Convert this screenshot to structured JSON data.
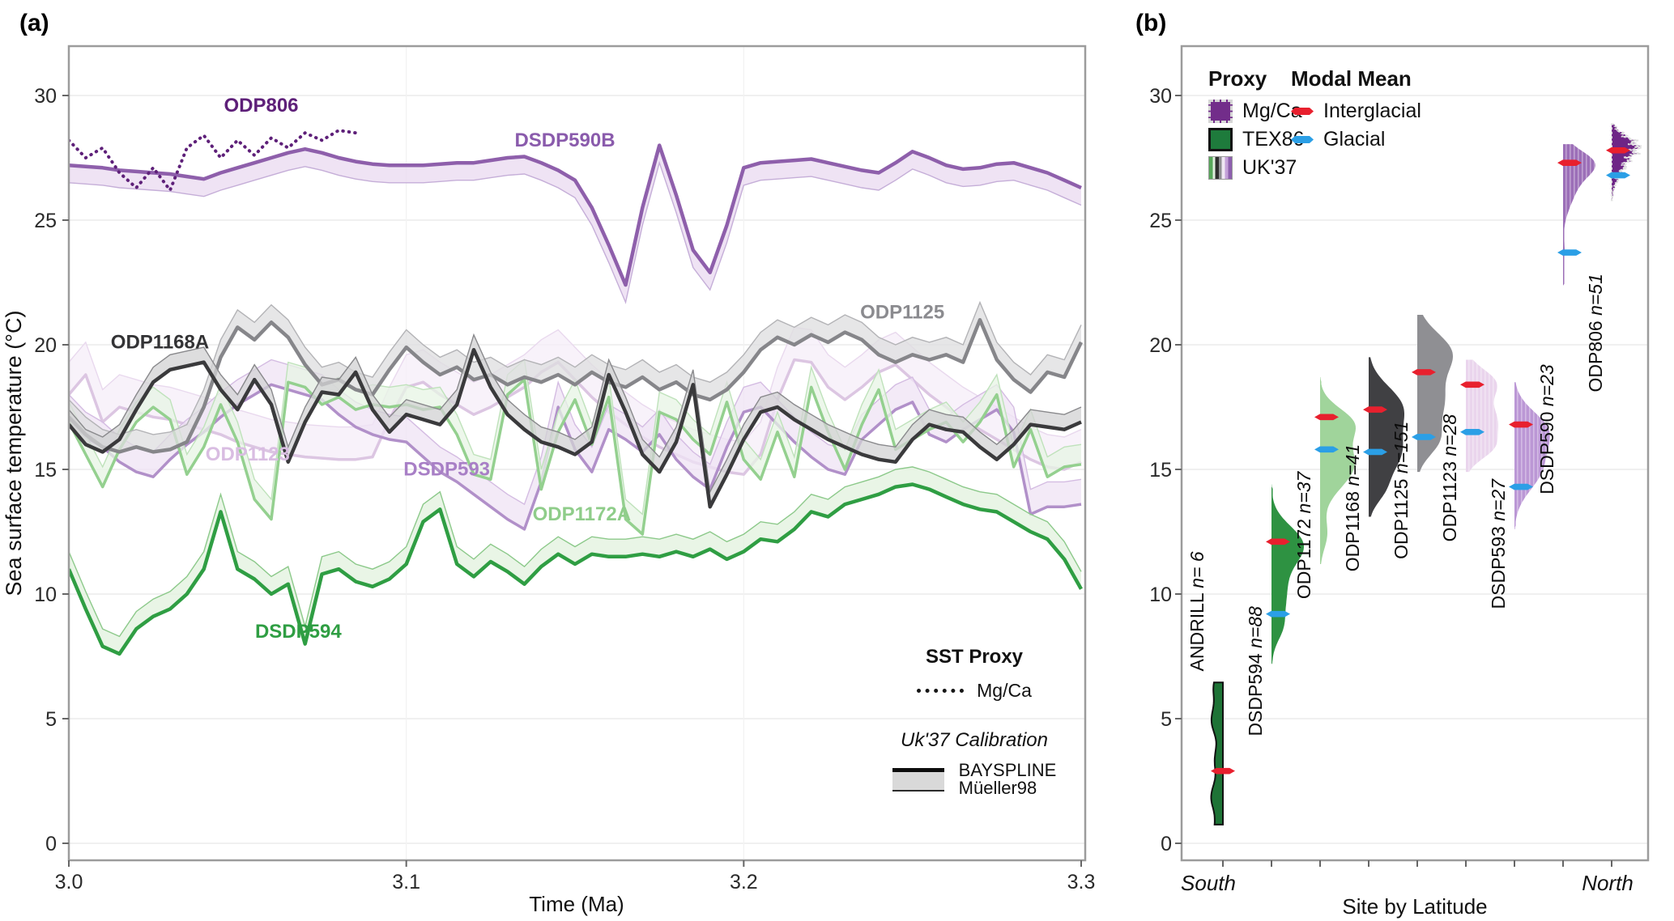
{
  "figure": {
    "panel_a_letter": "(a)",
    "panel_b_letter": "(b)"
  },
  "panel_a": {
    "y_axis_title": "Sea surface temperature (°C)",
    "x_axis_title": "Time (Ma)",
    "legend": {
      "sst_proxy_title": "SST Proxy",
      "mgca_label": "Mg/Ca",
      "uk37_title": "Uk'37 Calibration",
      "bayspline_label": "BAYSPLINE",
      "mueller_label": "Müeller98"
    }
  },
  "panel_b": {
    "x_axis_title": "Site by Latitude",
    "south_label": "South",
    "north_label": "North",
    "legend": {
      "proxy_title": "Proxy",
      "mgca_label": "Mg/Ca",
      "tex86_label": "TEX86",
      "uk37_label": "UK'37",
      "modal_mean_title": "Modal Mean",
      "interglacial_label": "Interglacial",
      "glacial_label": "Glacial"
    }
  },
  "chart_data": [
    {
      "type": "line",
      "panel": "a",
      "xlabel": "Time (Ma)",
      "ylabel": "Sea surface temperature (°C)",
      "xlim": [
        3.0,
        3.3
      ],
      "ylim": [
        -0.7,
        32.6
      ],
      "x_ticks": [
        {
          "v": 3.0,
          "label": "3.0"
        },
        {
          "v": 3.1,
          "label": "3.1"
        },
        {
          "v": 3.2,
          "label": "3.2"
        },
        {
          "v": 3.3,
          "label": "3.3"
        }
      ],
      "y_ticks": [
        0,
        5,
        10,
        15,
        20,
        25,
        30
      ],
      "grid": "horizontal",
      "x_step": 0.005,
      "series": [
        {
          "name": "ODP1123",
          "proxy": "UK'37",
          "color": "#dcc6e2",
          "line_width": 3.5,
          "band_offset": 1.3,
          "band_color": "#f6eef8",
          "band_edge": "#e9d9ee",
          "label": {
            "text": "ODP1123",
            "x": 3.053,
            "y": 15.35,
            "color": "#d9bde2"
          },
          "x_start": 3.0,
          "values": [
            18.0,
            18.8,
            16.9,
            17.5,
            17.3,
            17.1,
            17.0,
            16.8,
            16.6,
            16.4,
            16.1,
            15.9,
            15.7,
            15.6,
            15.5,
            15.45,
            15.4,
            15.4,
            15.5,
            17.0,
            18.3,
            18.5,
            18.0,
            17.6,
            17.2,
            17.5,
            17.9,
            18.3,
            18.9,
            19.3,
            18.6,
            17.9,
            17.3,
            16.8,
            16.3,
            15.9,
            15.6,
            15.3,
            15.1,
            14.9,
            14.8,
            15.6,
            17.8,
            19.4,
            19.3,
            18.3,
            17.8,
            18.3,
            18.9,
            19.2,
            18.6,
            18.0,
            17.5,
            17.0,
            16.6,
            16.2,
            15.8,
            15.4,
            15.1,
            15.0,
            15.3
          ]
        },
        {
          "name": "DSDP593",
          "proxy": "UK'37",
          "color": "#b190c9",
          "line_width": 3.5,
          "band_offset": 1.0,
          "band_color": "#efe3f4",
          "band_edge": "#d4bce2",
          "label": {
            "text": "DSDP593",
            "x": 3.112,
            "y": 14.75,
            "color": "#a87fc6"
          },
          "x_start": 3.0,
          "values": [
            17.0,
            16.3,
            15.9,
            15.3,
            14.9,
            14.7,
            15.4,
            16.0,
            16.5,
            17.1,
            17.6,
            18.0,
            18.4,
            18.2,
            18.0,
            17.8,
            17.2,
            16.7,
            16.4,
            16.2,
            16.1,
            15.5,
            14.9,
            14.5,
            14.0,
            13.5,
            13.0,
            12.6,
            14.5,
            17.5,
            15.8,
            14.9,
            16.6,
            16.2,
            15.7,
            16.4,
            15.4,
            14.7,
            14.2,
            15.9,
            17.3,
            17.5,
            16.8,
            16.1,
            15.5,
            15.0,
            14.8,
            16.2,
            16.8,
            17.4,
            17.7,
            16.4,
            16.1,
            16.6,
            17.0,
            17.4,
            16.5,
            13.2,
            13.5,
            13.5,
            13.6
          ]
        },
        {
          "name": "ODP1172A",
          "proxy": "TEX86",
          "color": "#94d08f",
          "line_width": 3.5,
          "band_offset": 0.8,
          "band_color": "#e7f4e4",
          "band_edge": "#bfe2bb",
          "label": {
            "text": "ODP1172A",
            "x": 3.152,
            "y": 12.95,
            "color": "#8fcd8a"
          },
          "x_start": 3.0,
          "values": [
            16.9,
            15.6,
            14.3,
            15.8,
            16.9,
            17.5,
            17.0,
            14.8,
            15.9,
            17.6,
            16.1,
            13.8,
            13.0,
            18.5,
            18.3,
            17.6,
            17.9,
            17.4,
            17.6,
            17.5,
            17.6,
            17.4,
            17.5,
            16.4,
            14.8,
            14.6,
            18.0,
            18.6,
            14.2,
            16.5,
            17.8,
            16.0,
            17.9,
            13.0,
            12.4,
            17.3,
            17.0,
            16.2,
            15.6,
            17.7,
            15.4,
            14.6,
            16.5,
            14.7,
            18.3,
            16.5,
            15.0,
            16.8,
            18.2,
            15.8,
            16.2,
            16.6,
            16.9,
            16.1,
            16.9,
            18.0,
            15.1,
            16.6,
            14.7,
            15.1,
            15.2
          ]
        },
        {
          "name": "ODP1125",
          "proxy": "UK'37",
          "color": "#86868a",
          "line_width": 4.5,
          "band_offset": 0.7,
          "band_color": "#dededf",
          "band_edge": "#b3b3b6",
          "label": {
            "text": "ODP1125",
            "x": 3.247,
            "y": 21.05,
            "color": "#8b8b8f"
          },
          "x_start": 3.0,
          "values": [
            17.1,
            16.4,
            15.9,
            15.7,
            15.9,
            15.7,
            15.8,
            16.1,
            17.5,
            19.5,
            20.7,
            20.2,
            20.9,
            20.3,
            19.2,
            18.4,
            18.6,
            18.2,
            18.0,
            19.0,
            19.9,
            19.3,
            18.8,
            19.1,
            18.6,
            18.8,
            18.4,
            18.7,
            18.5,
            18.8,
            18.4,
            18.9,
            18.5,
            18.3,
            18.7,
            18.2,
            18.5,
            18.0,
            17.8,
            18.2,
            18.9,
            19.8,
            20.3,
            20.0,
            20.4,
            20.1,
            20.5,
            20.2,
            19.6,
            19.3,
            19.6,
            19.4,
            19.6,
            19.3,
            21.0,
            19.4,
            18.6,
            18.1,
            18.9,
            18.7,
            20.1
          ]
        },
        {
          "name": "ODP1168A",
          "proxy": "UK'37",
          "color": "#3a3a3c",
          "line_width": 4.5,
          "band_offset": 0.6,
          "band_color": "#d2d2d3",
          "band_edge": "#89898c",
          "label": {
            "text": "ODP1168A",
            "x": 3.027,
            "y": 19.85,
            "color": "#333335"
          },
          "x_start": 3.0,
          "values": [
            16.8,
            16.0,
            15.7,
            16.2,
            17.4,
            18.5,
            19.0,
            19.15,
            19.3,
            18.2,
            17.4,
            18.6,
            17.6,
            15.3,
            16.9,
            18.1,
            18.0,
            18.9,
            17.4,
            16.5,
            17.2,
            17.0,
            16.8,
            17.6,
            19.8,
            18.3,
            17.2,
            16.6,
            16.1,
            15.9,
            15.6,
            16.1,
            18.8,
            17.3,
            15.6,
            14.9,
            16.1,
            18.4,
            13.5,
            14.8,
            16.2,
            17.3,
            17.5,
            17.0,
            16.6,
            16.2,
            15.9,
            15.6,
            15.4,
            15.3,
            16.2,
            16.8,
            16.6,
            16.5,
            15.9,
            15.4,
            16.0,
            16.8,
            16.7,
            16.6,
            16.9
          ]
        },
        {
          "name": "DSDP594",
          "proxy": "TEX86",
          "color": "#2f9e43",
          "line_width": 4.5,
          "band_offset": 0.7,
          "band_color": "#e2f1de",
          "band_edge": "#8cc98a",
          "label": {
            "text": "DSDP594",
            "x": 3.068,
            "y": 8.25,
            "color": "#2f9e43"
          },
          "x_start": 3.0,
          "values": [
            11.0,
            9.4,
            7.9,
            7.6,
            8.6,
            9.1,
            9.4,
            10.0,
            11.0,
            13.3,
            11.0,
            10.6,
            10.0,
            10.4,
            8.0,
            10.8,
            11.0,
            10.5,
            10.3,
            10.6,
            11.2,
            12.9,
            13.4,
            11.2,
            10.7,
            11.3,
            10.9,
            10.4,
            11.1,
            11.6,
            11.2,
            11.6,
            11.5,
            11.5,
            11.6,
            11.5,
            11.7,
            11.5,
            11.8,
            11.4,
            11.7,
            12.2,
            12.1,
            12.6,
            13.3,
            13.1,
            13.6,
            13.8,
            14.0,
            14.3,
            14.4,
            14.2,
            13.9,
            13.6,
            13.4,
            13.3,
            12.9,
            12.5,
            12.2,
            11.4,
            10.2
          ]
        },
        {
          "name": "DSDP590B",
          "proxy": "UK'37",
          "color": "#8e5fab",
          "line_width": 4.5,
          "band_offset": -0.7,
          "band_color": "#ead9f0",
          "band_edge": "#c5aed8",
          "label": {
            "text": "DSDP590B",
            "x": 3.147,
            "y": 27.95,
            "color": "#8a5bac"
          },
          "x_start": 3.0,
          "values": [
            27.2,
            27.15,
            27.1,
            27.0,
            26.95,
            26.9,
            26.85,
            26.75,
            26.65,
            26.9,
            27.1,
            27.3,
            27.5,
            27.7,
            27.85,
            27.7,
            27.5,
            27.35,
            27.25,
            27.2,
            27.2,
            27.2,
            27.25,
            27.3,
            27.3,
            27.4,
            27.5,
            27.55,
            27.3,
            27.0,
            26.6,
            25.5,
            24.0,
            22.4,
            25.5,
            28.0,
            26.0,
            23.8,
            22.9,
            24.8,
            27.1,
            27.3,
            27.35,
            27.4,
            27.45,
            27.3,
            27.15,
            27.0,
            26.9,
            27.3,
            27.75,
            27.5,
            27.2,
            27.05,
            27.1,
            27.25,
            27.3,
            27.1,
            26.9,
            26.6,
            26.3
          ]
        },
        {
          "name": "ODP806",
          "proxy": "Mg/Ca",
          "color": "#5e2079",
          "line_width": 3.5,
          "dotted": true,
          "label": {
            "text": "ODP806",
            "x": 3.057,
            "y": 29.35,
            "color": "#5e2079"
          },
          "x_start": 3.0,
          "values": [
            28.2,
            27.5,
            27.9,
            26.9,
            26.3,
            27.1,
            26.2,
            27.9,
            28.4,
            27.5,
            28.2,
            27.6,
            28.3,
            27.9,
            28.5,
            28.2,
            28.6,
            28.5
          ]
        }
      ]
    },
    {
      "type": "violin",
      "panel": "b",
      "xlabel": "Site by Latitude",
      "x_axis_ends": [
        "South",
        "North"
      ],
      "ylim": [
        -0.7,
        32.6
      ],
      "y_ticks": [
        0,
        5,
        10,
        15,
        20,
        25,
        30
      ],
      "grid": "horizontal",
      "sites": [
        {
          "name": "ANDRILL",
          "n_label": "n= 6",
          "proxy": "TEX86",
          "fill": "#1e7336",
          "outline": "#111111",
          "shape": "strip-left",
          "range": [
            0.75,
            6.45
          ],
          "max_width": 14,
          "interglacial": 2.9,
          "glacial": null,
          "label_bottom": 6.9
        },
        {
          "name": "DSDP594",
          "n_label": "n=88",
          "proxy": "TEX86",
          "fill": "#2e9242",
          "shape": "half",
          "range": [
            7.2,
            14.4
          ],
          "bumps": [
            [
              12.0,
              0.75,
              1.0
            ],
            [
              10.0,
              1.1,
              0.5
            ],
            [
              8.6,
              0.5,
              0.18
            ]
          ],
          "max_width": 40,
          "interglacial": 12.1,
          "glacial": 9.2,
          "label_bottom": 4.3
        },
        {
          "name": "ODP1172",
          "n_label": "n=37",
          "proxy": "TEX86",
          "fill": "#a0d49b",
          "shape": "half",
          "range": [
            11.2,
            18.7
          ],
          "bumps": [
            [
              16.9,
              0.6,
              0.8
            ],
            [
              15.2,
              0.95,
              1.0
            ],
            [
              12.4,
              0.6,
              0.2
            ]
          ],
          "max_width": 44,
          "interglacial": 17.1,
          "glacial": 15.8,
          "label_bottom": 9.8
        },
        {
          "name": "ODP1168",
          "n_label": "n=41",
          "proxy": "UK'37",
          "fill": "#404043",
          "shape": "half",
          "range": [
            13.1,
            19.5
          ],
          "bumps": [
            [
              17.6,
              0.8,
              0.9
            ],
            [
              15.7,
              1.0,
              1.0
            ],
            [
              14.1,
              0.5,
              0.25
            ]
          ],
          "max_width": 44,
          "interglacial": 17.4,
          "glacial": 15.7,
          "label_bottom": 10.9
        },
        {
          "name": "ODP1125",
          "n_label": "n=151",
          "proxy": "UK'37",
          "fill": "#8f8f93",
          "shape": "half",
          "range": [
            14.9,
            21.2
          ],
          "bumps": [
            [
              19.7,
              0.8,
              1.0
            ],
            [
              17.7,
              0.95,
              0.8
            ],
            [
              16.1,
              0.6,
              0.5
            ]
          ],
          "max_width": 44,
          "interglacial": 18.9,
          "glacial": 16.3,
          "label_bottom": 11.4
        },
        {
          "name": "ODP1123",
          "n_label": "n=28",
          "proxy": "UK'37",
          "fill": "#ead5ed",
          "texture": true,
          "shape": "half",
          "range": [
            14.9,
            19.4
          ],
          "bumps": [
            [
              18.5,
              0.55,
              0.85
            ],
            [
              16.9,
              0.8,
              1.0
            ],
            [
              15.8,
              0.45,
              0.5
            ]
          ],
          "max_width": 40,
          "interglacial": 18.4,
          "glacial": 16.5,
          "label_bottom": 12.1
        },
        {
          "name": "DSDP593",
          "n_label": "n=27",
          "proxy": "UK'37",
          "fill": "#bb97d5",
          "texture": true,
          "shape": "half",
          "range": [
            12.6,
            18.5
          ],
          "bumps": [
            [
              16.6,
              0.75,
              1.0
            ],
            [
              15.0,
              0.85,
              0.85
            ]
          ],
          "max_width": 44,
          "interglacial": 16.8,
          "glacial": 14.3,
          "label_bottom": 9.4
        },
        {
          "name": "DSDP590",
          "n_label": "n=23",
          "proxy": "UK'37",
          "fill": "#9c6fb8",
          "texture": true,
          "shape": "half",
          "range": [
            22.3,
            28.05
          ],
          "bumps": [
            [
              27.3,
              0.5,
              1.0
            ],
            [
              26.4,
              0.8,
              0.5
            ],
            [
              23.8,
              0.35,
              0.06
            ]
          ],
          "max_width": 40,
          "interglacial": 27.3,
          "glacial": 23.7,
          "label_bottom": 14.0
        },
        {
          "name": "ODP806",
          "n_label": "n=51",
          "proxy": "Mg/Ca",
          "fill": "#6e2586",
          "outline_dashed": "#e0e0e0",
          "jagged": true,
          "shape": "half",
          "range": [
            25.8,
            28.85
          ],
          "bumps": [
            [
              28.0,
              0.4,
              1.0
            ],
            [
              27.2,
              0.55,
              0.5
            ]
          ],
          "max_width": 30,
          "interglacial": 27.8,
          "glacial": 26.8,
          "label_bottom": 18.1
        }
      ],
      "modal_mean_colors": {
        "interglacial": "#e8202e",
        "glacial": "#2b9fe6"
      }
    }
  ]
}
